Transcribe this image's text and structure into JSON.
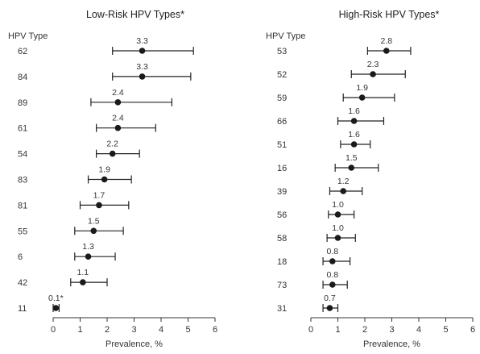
{
  "chart_data": [
    {
      "type": "scatter",
      "title": "Low-Risk HPV Types*",
      "category_header": "HPV Type",
      "xlabel": "Prevalence, %",
      "xlim": [
        0,
        6
      ],
      "xticks": [
        "0",
        "1",
        "2",
        "3",
        "4",
        "5",
        "6"
      ],
      "point_color": "#1a1a1a",
      "rows": [
        {
          "type": "62",
          "value": 3.3,
          "label": "3.3",
          "low": 2.2,
          "high": 5.2
        },
        {
          "type": "84",
          "value": 3.3,
          "label": "3.3",
          "low": 2.2,
          "high": 5.1
        },
        {
          "type": "89",
          "value": 2.4,
          "label": "2.4",
          "low": 1.4,
          "high": 4.4
        },
        {
          "type": "61",
          "value": 2.4,
          "label": "2.4",
          "low": 1.6,
          "high": 3.8
        },
        {
          "type": "54",
          "value": 2.2,
          "label": "2.2",
          "low": 1.6,
          "high": 3.2
        },
        {
          "type": "83",
          "value": 1.9,
          "label": "1.9",
          "low": 1.3,
          "high": 2.9
        },
        {
          "type": "81",
          "value": 1.7,
          "label": "1.7",
          "low": 1.0,
          "high": 2.8
        },
        {
          "type": "55",
          "value": 1.5,
          "label": "1.5",
          "low": 0.8,
          "high": 2.6
        },
        {
          "type": "6",
          "value": 1.3,
          "label": "1.3",
          "low": 0.8,
          "high": 2.3
        },
        {
          "type": "42",
          "value": 1.1,
          "label": "1.1",
          "low": 0.65,
          "high": 2.0
        },
        {
          "type": "11",
          "value": 0.1,
          "label": "0.1*",
          "low": 0.0,
          "high": 0.22
        }
      ]
    },
    {
      "type": "scatter",
      "title": "High-Risk HPV Types*",
      "category_header": "HPV Type",
      "xlabel": "Prevalence, %",
      "xlim": [
        0,
        6
      ],
      "xticks": [
        "0",
        "1",
        "2",
        "3",
        "4",
        "5",
        "6"
      ],
      "point_color": "#1a1a1a",
      "rows": [
        {
          "type": "53",
          "value": 2.8,
          "label": "2.8",
          "low": 2.1,
          "high": 3.7
        },
        {
          "type": "52",
          "value": 2.3,
          "label": "2.3",
          "low": 1.5,
          "high": 3.5
        },
        {
          "type": "59",
          "value": 1.9,
          "label": "1.9",
          "low": 1.2,
          "high": 3.1
        },
        {
          "type": "66",
          "value": 1.6,
          "label": "1.6",
          "low": 1.0,
          "high": 2.7
        },
        {
          "type": "51",
          "value": 1.6,
          "label": "1.6",
          "low": 1.1,
          "high": 2.2
        },
        {
          "type": "16",
          "value": 1.5,
          "label": "1.5",
          "low": 0.9,
          "high": 2.5
        },
        {
          "type": "39",
          "value": 1.2,
          "label": "1.2",
          "low": 0.7,
          "high": 1.9
        },
        {
          "type": "56",
          "value": 1.0,
          "label": "1.0",
          "low": 0.65,
          "high": 1.6
        },
        {
          "type": "58",
          "value": 1.0,
          "label": "1.0",
          "low": 0.6,
          "high": 1.65
        },
        {
          "type": "18",
          "value": 0.8,
          "label": "0.8",
          "low": 0.45,
          "high": 1.45
        },
        {
          "type": "73",
          "value": 0.8,
          "label": "0.8",
          "low": 0.45,
          "high": 1.35
        },
        {
          "type": "31",
          "value": 0.7,
          "label": "0.7",
          "low": 0.45,
          "high": 1.0
        }
      ]
    }
  ]
}
